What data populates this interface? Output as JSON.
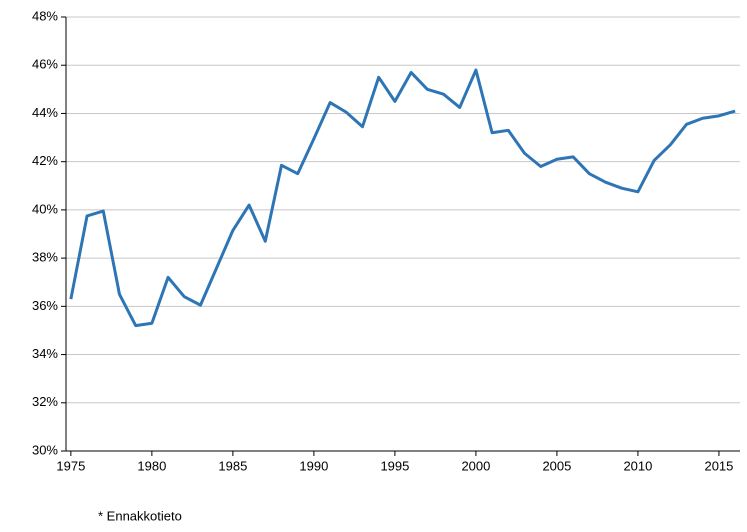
{
  "chart_data": {
    "type": "line",
    "x": [
      1975,
      1976,
      1977,
      1978,
      1979,
      1980,
      1981,
      1982,
      1983,
      1984,
      1985,
      1986,
      1987,
      1988,
      1989,
      1990,
      1991,
      1992,
      1993,
      1994,
      1995,
      1996,
      1997,
      1998,
      1999,
      2000,
      2001,
      2002,
      2003,
      2004,
      2005,
      2006,
      2007,
      2008,
      2009,
      2010,
      2011,
      2012,
      2013,
      2014,
      2015,
      2016
    ],
    "series": [
      {
        "color": "#2e75b6",
        "values": [
          36.3,
          39.75,
          39.95,
          36.5,
          35.2,
          35.3,
          37.2,
          36.4,
          36.05,
          37.6,
          39.15,
          40.2,
          38.7,
          41.85,
          41.5,
          42.95,
          44.45,
          44.05,
          43.45,
          45.5,
          44.5,
          45.7,
          45.0,
          44.8,
          44.25,
          45.8,
          43.2,
          43.3,
          42.35,
          41.8,
          42.1,
          42.2,
          41.5,
          41.15,
          40.9,
          40.75,
          42.05,
          42.7,
          43.55,
          43.8,
          43.9,
          44.1
        ]
      }
    ],
    "xlim": [
      1974.7,
      2016.3
    ],
    "xticks": [
      1975,
      1980,
      1985,
      1990,
      1995,
      2000,
      2005,
      2010,
      2015
    ],
    "ylim": [
      30,
      48
    ],
    "yticks": [
      {
        "value": 30,
        "label": "30%"
      },
      {
        "value": 32,
        "label": "32%"
      },
      {
        "value": 34,
        "label": "34%"
      },
      {
        "value": 36,
        "label": "36%"
      },
      {
        "value": 38,
        "label": "38%"
      },
      {
        "value": 40,
        "label": "40%"
      },
      {
        "value": 42,
        "label": "42%"
      },
      {
        "value": 44,
        "label": "44%"
      },
      {
        "value": 46,
        "label": "46%"
      },
      {
        "value": 48,
        "label": "48%"
      }
    ],
    "grid": true,
    "footnote": "* Ennakkotieto"
  }
}
